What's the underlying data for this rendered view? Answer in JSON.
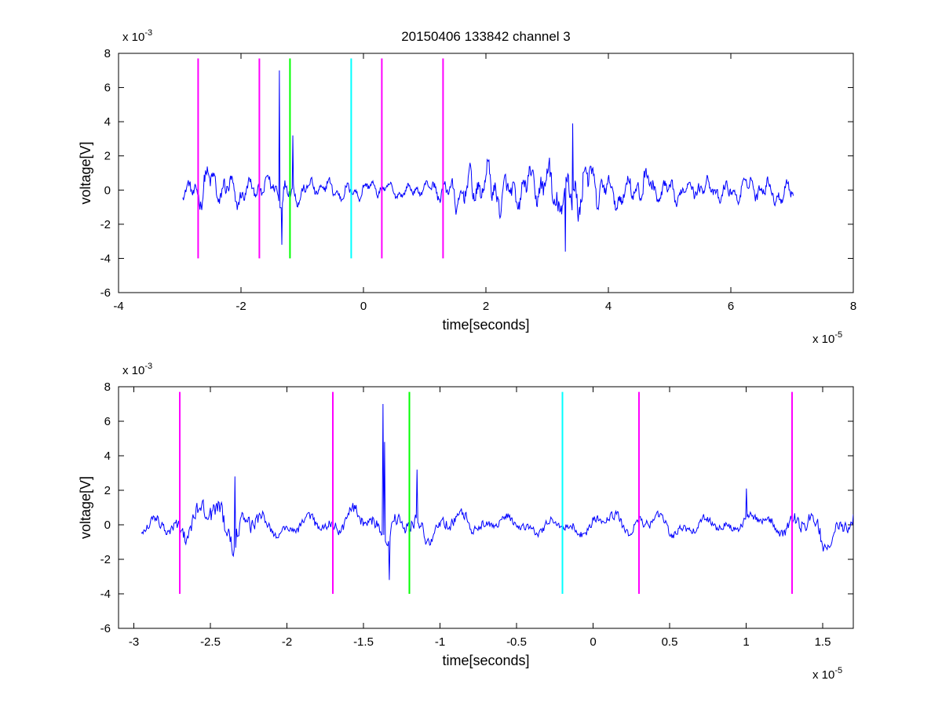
{
  "chart_data": [
    {
      "type": "line",
      "title": "20150406 133842 channel 3",
      "xlabel": "time[seconds]",
      "ylabel": "voltage[V]",
      "x_exponent_label": "x 10",
      "x_exponent": "-5",
      "y_exponent_label": "x 10",
      "y_exponent": "-3",
      "xlim": [
        -4,
        8
      ],
      "ylim": [
        -6,
        8
      ],
      "x_ticks": [
        -4,
        -2,
        0,
        2,
        4,
        6,
        8
      ],
      "x_tick_labels": [
        "-4",
        "-2",
        "0",
        "2",
        "4",
        "6",
        "8"
      ],
      "y_ticks": [
        -6,
        -4,
        -2,
        0,
        2,
        4,
        6,
        8
      ],
      "y_tick_labels": [
        "-6",
        "-4",
        "-2",
        "0",
        "2",
        "4",
        "6",
        "8"
      ],
      "grid": false,
      "series": [
        {
          "x_range": [
            -2.95,
            7.02
          ],
          "color": "#0000ff",
          "envelope": [
            {
              "x": -2.95,
              "amp": 0.6
            },
            {
              "x": -2.6,
              "amp": 1.6
            },
            {
              "x": -2.2,
              "amp": 1.4
            },
            {
              "x": -1.8,
              "amp": 0.8
            },
            {
              "x": -1.3,
              "amp": 1.2
            },
            {
              "x": -1.0,
              "amp": 0.8
            },
            {
              "x": -0.2,
              "amp": 0.7
            },
            {
              "x": 0.4,
              "amp": 0.6
            },
            {
              "x": 1.0,
              "amp": 0.5
            },
            {
              "x": 1.4,
              "amp": 1.2
            },
            {
              "x": 2.0,
              "amp": 1.8
            },
            {
              "x": 2.6,
              "amp": 1.4
            },
            {
              "x": 3.1,
              "amp": 2.3
            },
            {
              "x": 3.5,
              "amp": 2.4
            },
            {
              "x": 4.0,
              "amp": 1.3
            },
            {
              "x": 4.6,
              "amp": 1.4
            },
            {
              "x": 5.2,
              "amp": 0.9
            },
            {
              "x": 6.0,
              "amp": 0.9
            },
            {
              "x": 6.6,
              "amp": 1.0
            },
            {
              "x": 7.02,
              "amp": 0.9
            }
          ],
          "spikes": [
            {
              "x": -1.37,
              "y": 7.0
            },
            {
              "x": -1.33,
              "y": -3.2
            },
            {
              "x": -1.15,
              "y": 3.2
            },
            {
              "x": 3.42,
              "y": 3.9
            },
            {
              "x": 3.3,
              "y": -3.6
            }
          ]
        }
      ],
      "vertical_markers": [
        {
          "x": -2.7,
          "y_range": [
            -4,
            7.7
          ],
          "color": "#ff00ff"
        },
        {
          "x": -1.7,
          "y_range": [
            -4,
            7.7
          ],
          "color": "#ff00ff"
        },
        {
          "x": -1.2,
          "y_range": [
            -4,
            7.7
          ],
          "color": "#00ff00"
        },
        {
          "x": -0.2,
          "y_range": [
            -4,
            7.7
          ],
          "color": "#00ffff"
        },
        {
          "x": 0.3,
          "y_range": [
            -4,
            7.7
          ],
          "color": "#ff00ff"
        },
        {
          "x": 1.3,
          "y_range": [
            -4,
            7.7
          ],
          "color": "#ff00ff"
        }
      ]
    },
    {
      "type": "line",
      "title": "",
      "xlabel": "time[seconds]",
      "ylabel": "voltage[V]",
      "x_exponent_label": "x 10",
      "x_exponent": "-5",
      "y_exponent_label": "x 10",
      "y_exponent": "-3",
      "xlim": [
        -3.1,
        1.7
      ],
      "ylim": [
        -6,
        8
      ],
      "x_ticks": [
        -3,
        -2.5,
        -2,
        -1.5,
        -1,
        -0.5,
        0,
        0.5,
        1,
        1.5
      ],
      "x_tick_labels": [
        "-3",
        "-2.5",
        "-2",
        "-1.5",
        "-1",
        "-0.5",
        "0",
        "0.5",
        "1",
        "1.5"
      ],
      "y_ticks": [
        -6,
        -4,
        -2,
        0,
        2,
        4,
        6,
        8
      ],
      "y_tick_labels": [
        "-6",
        "-4",
        "-2",
        "0",
        "2",
        "4",
        "6",
        "8"
      ],
      "grid": false,
      "series": [
        {
          "x_range": [
            -2.95,
            1.7
          ],
          "color": "#0000ff",
          "envelope": [
            {
              "x": -2.95,
              "amp": 0.7
            },
            {
              "x": -2.7,
              "amp": 1.3
            },
            {
              "x": -2.45,
              "amp": 1.8
            },
            {
              "x": -2.3,
              "amp": 2.0
            },
            {
              "x": -2.1,
              "amp": 0.7
            },
            {
              "x": -1.8,
              "amp": 0.9
            },
            {
              "x": -1.5,
              "amp": 1.1
            },
            {
              "x": -1.2,
              "amp": 1.3
            },
            {
              "x": -0.9,
              "amp": 1.0
            },
            {
              "x": -0.5,
              "amp": 0.6
            },
            {
              "x": -0.2,
              "amp": 0.7
            },
            {
              "x": 0.2,
              "amp": 0.9
            },
            {
              "x": 0.5,
              "amp": 0.8
            },
            {
              "x": 0.9,
              "amp": 0.7
            },
            {
              "x": 1.2,
              "amp": 0.8
            },
            {
              "x": 1.4,
              "amp": 1.6
            },
            {
              "x": 1.7,
              "amp": 1.2
            }
          ],
          "spikes": [
            {
              "x": -1.37,
              "y": 7.0
            },
            {
              "x": -1.36,
              "y": 4.8
            },
            {
              "x": -1.33,
              "y": -3.2
            },
            {
              "x": -1.15,
              "y": 3.2
            },
            {
              "x": -2.34,
              "y": 2.8
            },
            {
              "x": 1.0,
              "y": 2.1
            }
          ]
        }
      ],
      "vertical_markers": [
        {
          "x": -2.7,
          "y_range": [
            -4,
            7.7
          ],
          "color": "#ff00ff"
        },
        {
          "x": -1.7,
          "y_range": [
            -4,
            7.7
          ],
          "color": "#ff00ff"
        },
        {
          "x": -1.2,
          "y_range": [
            -4,
            7.7
          ],
          "color": "#00ff00"
        },
        {
          "x": -0.2,
          "y_range": [
            -4,
            7.7
          ],
          "color": "#00ffff"
        },
        {
          "x": 0.3,
          "y_range": [
            -4,
            7.7
          ],
          "color": "#ff00ff"
        },
        {
          "x": 1.3,
          "y_range": [
            -4,
            7.7
          ],
          "color": "#ff00ff"
        }
      ]
    }
  ]
}
